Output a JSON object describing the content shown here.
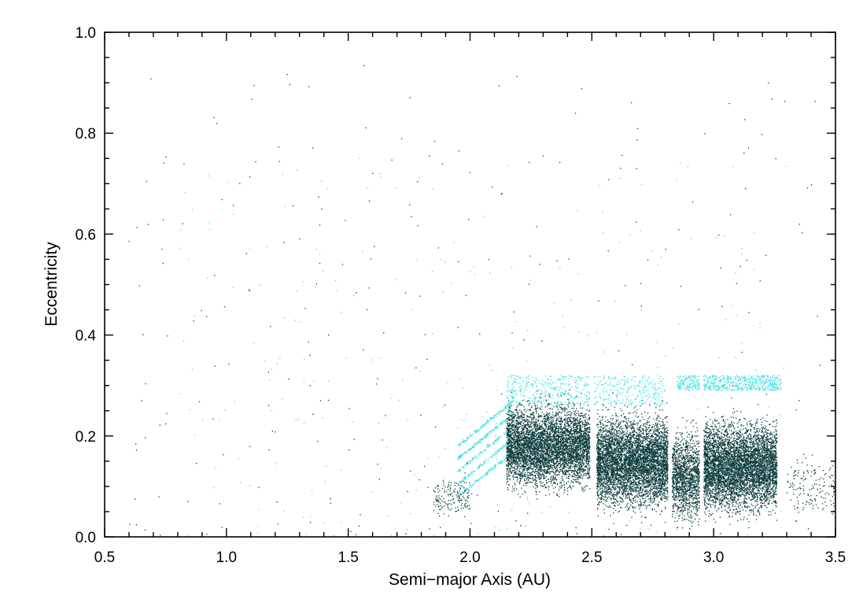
{
  "chart_data": {
    "type": "scatter",
    "title": "",
    "xlabel": "Semi−major Axis (AU)",
    "ylabel": "Eccentricity",
    "xlim": [
      0.5,
      3.5
    ],
    "ylim": [
      0.0,
      1.0
    ],
    "grid": false,
    "x_ticks": [
      0.5,
      1.0,
      1.5,
      2.0,
      2.5,
      3.0,
      3.5
    ],
    "x_tick_labels": [
      "0.5",
      "1.0",
      "1.5",
      "2.0",
      "2.5",
      "3.0",
      "3.5"
    ],
    "y_ticks": [
      0.0,
      0.2,
      0.4,
      0.6,
      0.8,
      1.0
    ],
    "y_tick_labels": [
      "0.0",
      "0.2",
      "0.4",
      "0.6",
      "0.8",
      "1.0"
    ],
    "series": [
      {
        "color": "#0b3a3a",
        "clusters": [
          {
            "x_range": [
              2.15,
              2.5
            ],
            "e_range": [
              0.02,
              0.32
            ],
            "e_center": 0.18,
            "density": "very high"
          },
          {
            "x_range": [
              2.52,
              2.82
            ],
            "e_range": [
              0.0,
              0.33
            ],
            "e_center": 0.15,
            "density": "very high"
          },
          {
            "x_range": [
              2.83,
              2.95
            ],
            "e_range": [
              0.0,
              0.32
            ],
            "e_center": 0.12,
            "density": "high"
          },
          {
            "x_range": [
              2.96,
              3.26
            ],
            "e_range": [
              0.0,
              0.33
            ],
            "e_center": 0.14,
            "density": "very high"
          },
          {
            "x_range": [
              1.85,
              2.0
            ],
            "e_range": [
              0.02,
              0.16
            ],
            "e_center": 0.08,
            "density": "low"
          },
          {
            "x_range": [
              3.3,
              3.5
            ],
            "e_range": [
              0.01,
              0.22
            ],
            "e_center": 0.1,
            "density": "low"
          },
          {
            "x_range": [
              0.6,
              3.5
            ],
            "e_range": [
              0.0,
              0.95
            ],
            "e_center": 0.4,
            "density": "sparse"
          }
        ]
      },
      {
        "color": "#40e0e0",
        "clusters": [
          {
            "x_range": [
              1.95,
              2.18
            ],
            "e_range": [
              0.08,
              0.27
            ],
            "e_center": 0.17,
            "density": "medium",
            "shape": "diagonal bands"
          },
          {
            "x_range": [
              2.15,
              2.8
            ],
            "e_range": [
              0.26,
              0.32
            ],
            "e_center": 0.3,
            "density": "medium",
            "shape": "upper edge"
          },
          {
            "x_range": [
              2.85,
              3.28
            ],
            "e_range": [
              0.29,
              0.32
            ],
            "e_center": 0.31,
            "density": "medium",
            "shape": "upper edge"
          },
          {
            "x_range": [
              0.8,
              3.3
            ],
            "e_range": [
              0.0,
              0.75
            ],
            "e_center": 0.4,
            "density": "sparse"
          }
        ]
      }
    ],
    "gaps_at_au": [
      2.5,
      2.82,
      2.95
    ]
  }
}
